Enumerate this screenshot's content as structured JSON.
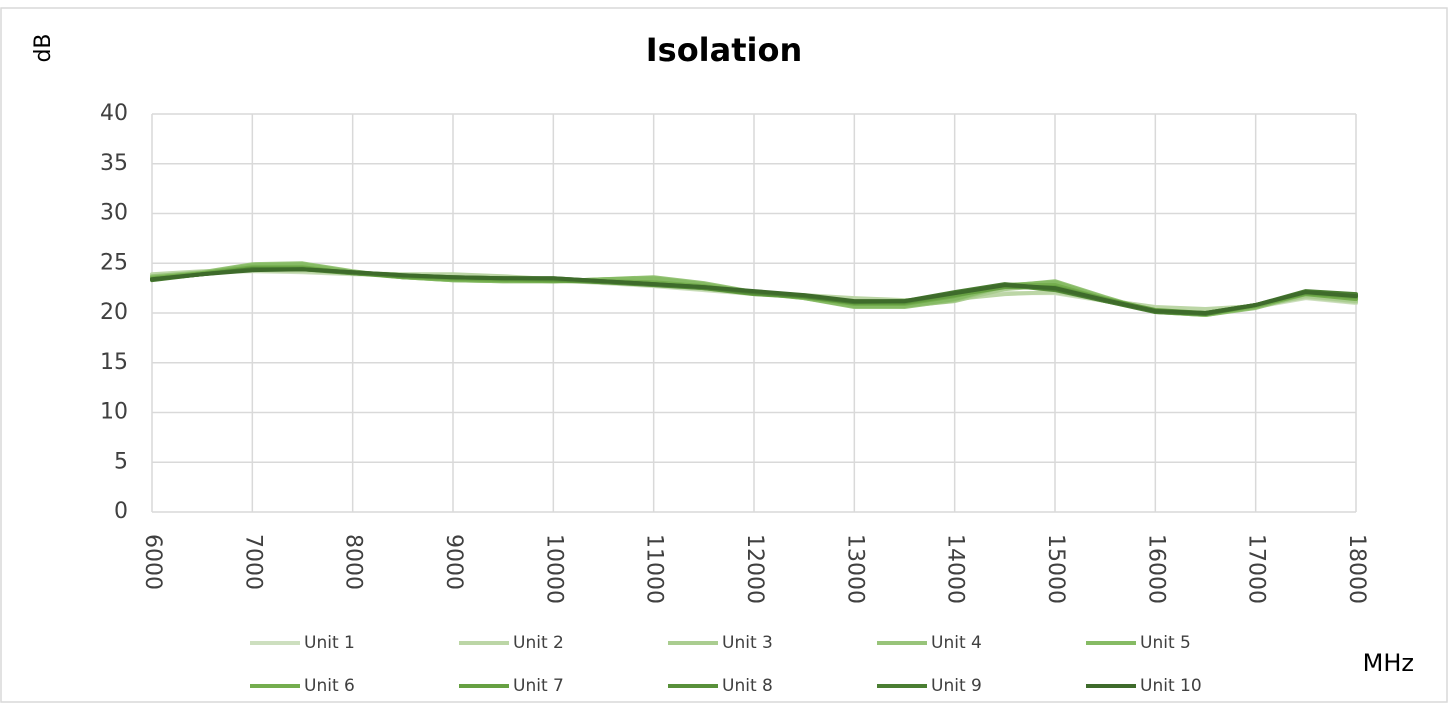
{
  "chart_data": {
    "type": "line",
    "title": "Isolation",
    "y_label": "dB",
    "x_label": "MHz",
    "x": [
      6000,
      6500,
      7000,
      7500,
      8000,
      8500,
      9000,
      9500,
      10000,
      10500,
      11000,
      11500,
      12000,
      12500,
      13000,
      13500,
      14000,
      14500,
      15000,
      15500,
      16000,
      16500,
      17000,
      17500,
      18000
    ],
    "xlim": [
      6000,
      18000
    ],
    "xticks": [
      6000,
      7000,
      8000,
      9000,
      10000,
      11000,
      12000,
      13000,
      14000,
      15000,
      16000,
      17000,
      18000
    ],
    "ylim": [
      0,
      40
    ],
    "yticks": [
      0,
      5,
      10,
      15,
      20,
      25,
      30,
      35,
      40
    ],
    "grid": true,
    "legend": "bottom",
    "series": [
      {
        "name": "Unit 1",
        "color": "#cddfbf",
        "values": [
          23.8,
          24.1,
          24.2,
          24.1,
          23.9,
          23.8,
          23.8,
          23.6,
          23.3,
          23.0,
          22.7,
          22.3,
          21.9,
          21.7,
          21.4,
          21.2,
          21.5,
          22.0,
          22.0,
          21.2,
          20.5,
          20.3,
          20.6,
          21.5,
          21.0
        ]
      },
      {
        "name": "Unit 2",
        "color": "#bcd6a6",
        "values": [
          23.9,
          24.2,
          24.3,
          24.2,
          24.0,
          23.9,
          23.9,
          23.7,
          23.4,
          23.1,
          22.8,
          22.4,
          22.0,
          21.8,
          21.5,
          21.3,
          21.4,
          21.9,
          22.1,
          21.3,
          20.6,
          20.4,
          20.7,
          21.6,
          21.1
        ]
      },
      {
        "name": "Unit 3",
        "color": "#aacd90",
        "values": [
          23.6,
          24.0,
          24.7,
          24.8,
          24.1,
          23.6,
          23.4,
          23.3,
          23.2,
          23.3,
          23.4,
          22.9,
          22.1,
          21.6,
          20.8,
          20.7,
          21.2,
          22.4,
          22.8,
          21.5,
          20.2,
          19.9,
          20.6,
          21.7,
          21.2
        ]
      },
      {
        "name": "Unit 4",
        "color": "#98c47a",
        "values": [
          23.7,
          24.1,
          24.9,
          25.0,
          24.2,
          23.6,
          23.3,
          23.2,
          23.2,
          23.4,
          23.6,
          23.0,
          22.1,
          21.5,
          20.6,
          20.6,
          21.3,
          22.7,
          23.2,
          21.6,
          20.1,
          19.8,
          20.5,
          21.9,
          21.5
        ]
      },
      {
        "name": "Unit 5",
        "color": "#86bb64",
        "values": [
          23.6,
          24.0,
          24.8,
          24.9,
          24.1,
          23.6,
          23.3,
          23.2,
          23.2,
          23.4,
          23.5,
          22.9,
          22.0,
          21.5,
          20.7,
          20.7,
          21.4,
          22.8,
          23.1,
          21.5,
          20.1,
          19.8,
          20.6,
          22.0,
          21.6
        ]
      },
      {
        "name": "Unit 6",
        "color": "#74ad4e",
        "values": [
          23.5,
          24.0,
          24.6,
          24.6,
          24.0,
          23.6,
          23.4,
          23.3,
          23.2,
          23.2,
          23.1,
          22.7,
          22.0,
          21.6,
          20.9,
          20.9,
          21.7,
          22.8,
          22.8,
          21.4,
          20.2,
          19.9,
          20.7,
          21.9,
          21.4
        ]
      },
      {
        "name": "Unit 7",
        "color": "#66a042",
        "values": [
          23.4,
          23.9,
          24.5,
          24.5,
          24.0,
          23.7,
          23.5,
          23.4,
          23.3,
          23.1,
          22.9,
          22.5,
          21.9,
          21.6,
          21.0,
          21.0,
          21.8,
          22.6,
          22.6,
          21.4,
          20.3,
          20.0,
          20.8,
          22.0,
          21.6
        ]
      },
      {
        "name": "Unit 8",
        "color": "#58903a",
        "values": [
          23.4,
          23.9,
          24.4,
          24.4,
          24.0,
          23.7,
          23.6,
          23.5,
          23.4,
          23.1,
          22.8,
          22.5,
          22.0,
          21.7,
          21.1,
          21.1,
          22.0,
          22.8,
          22.3,
          21.2,
          20.2,
          20.0,
          20.8,
          22.1,
          21.8
        ]
      },
      {
        "name": "Unit 9",
        "color": "#4a7e32",
        "values": [
          23.3,
          23.9,
          24.4,
          24.4,
          24.1,
          23.8,
          23.6,
          23.5,
          23.5,
          23.2,
          22.9,
          22.6,
          22.1,
          21.7,
          21.1,
          21.2,
          22.1,
          22.9,
          22.4,
          21.2,
          20.1,
          19.9,
          20.8,
          22.2,
          21.9
        ]
      },
      {
        "name": "Unit 10",
        "color": "#3e6b2b",
        "values": [
          23.4,
          23.9,
          24.3,
          24.4,
          24.1,
          23.8,
          23.6,
          23.5,
          23.5,
          23.2,
          22.9,
          22.6,
          22.2,
          21.8,
          21.2,
          21.2,
          22.0,
          22.8,
          22.5,
          21.3,
          20.2,
          20.0,
          20.8,
          22.1,
          21.7
        ]
      }
    ]
  }
}
